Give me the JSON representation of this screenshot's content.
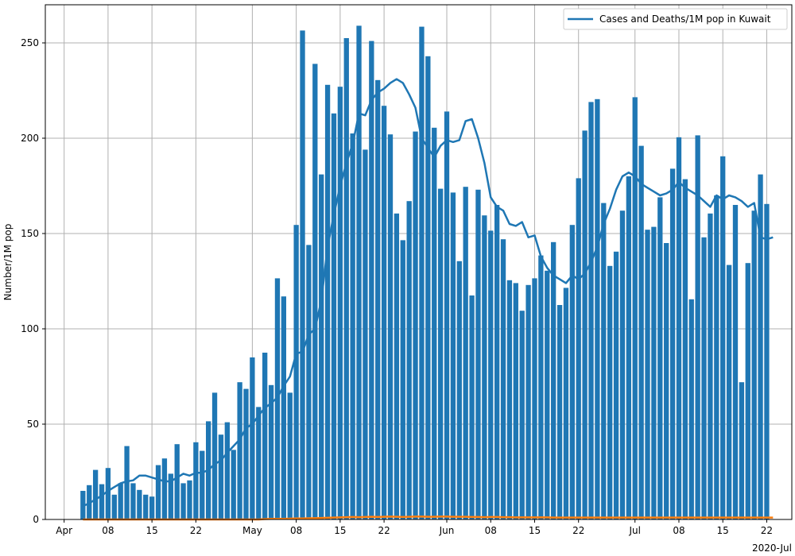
{
  "chart_data": {
    "type": "bar",
    "ylabel": "Number/1M pop",
    "xlabel": "",
    "x_offset_label": "2020-Jul",
    "ylim": [
      0,
      270
    ],
    "yticks": [
      0,
      50,
      100,
      150,
      200,
      250
    ],
    "xlim": [
      "2020-03-29",
      "2020-07-26"
    ],
    "xticks": [
      {
        "date": "2020-04-01",
        "label": "Apr"
      },
      {
        "date": "2020-04-08",
        "label": "08"
      },
      {
        "date": "2020-04-15",
        "label": "15"
      },
      {
        "date": "2020-04-22",
        "label": "22"
      },
      {
        "date": "2020-05-01",
        "label": "May"
      },
      {
        "date": "2020-05-08",
        "label": "08"
      },
      {
        "date": "2020-05-15",
        "label": "15"
      },
      {
        "date": "2020-05-22",
        "label": "22"
      },
      {
        "date": "2020-06-01",
        "label": "Jun"
      },
      {
        "date": "2020-06-08",
        "label": "08"
      },
      {
        "date": "2020-06-15",
        "label": "15"
      },
      {
        "date": "2020-06-22",
        "label": "22"
      },
      {
        "date": "2020-07-01",
        "label": "Jul"
      },
      {
        "date": "2020-07-08",
        "label": "08"
      },
      {
        "date": "2020-07-15",
        "label": "15"
      },
      {
        "date": "2020-07-22",
        "label": "22"
      }
    ],
    "grid": true,
    "legend": {
      "placement": "top-right",
      "entries": [
        "Cases and Deaths/1M pop in Kuwait"
      ]
    },
    "colors": {
      "cases": "#1f77b4",
      "deaths": "#ff7f0e"
    },
    "start_date": "2020-04-04",
    "series": [
      {
        "type": "bar",
        "values": [
          15,
          18,
          26,
          18.5,
          27,
          13,
          19,
          38.5,
          19,
          15.5,
          13,
          12,
          28.5,
          32,
          24,
          39.5,
          19,
          20.5,
          40.5,
          36,
          51.5,
          66.5,
          44.5,
          51,
          36.5,
          72,
          68.5,
          85,
          59,
          87.5,
          70.5,
          126.5,
          117,
          66.5,
          154.5,
          256.5,
          144,
          239,
          181,
          228,
          213,
          227,
          252.5,
          202.5,
          259,
          194,
          251,
          230.5,
          217,
          202,
          160.5,
          146.5,
          167,
          203.5,
          258.5,
          243,
          205.5,
          173.5,
          214,
          171.5,
          135.5,
          174.5,
          117.5,
          173,
          159.5,
          151.5,
          165,
          147,
          125.5,
          124,
          109.5,
          123,
          126.5,
          138.5,
          130.5,
          145.5,
          112.5,
          121.5,
          154.5,
          179,
          204,
          219,
          220.5,
          166,
          133,
          140.5,
          162,
          180,
          221.5,
          196,
          152,
          153.5,
          169,
          145,
          184,
          200.5,
          178.5,
          115.5,
          201.5,
          148,
          160.5,
          170,
          190.5,
          133.5,
          165,
          72,
          134.5,
          162,
          181,
          165.5
        ]
      },
      {
        "type": "line",
        "values": [
          7,
          8.5,
          10.5,
          12.5,
          15,
          17,
          19,
          20,
          20.5,
          23,
          23,
          22,
          21,
          20,
          20,
          22,
          24,
          23,
          24.5,
          24.5,
          26,
          29,
          31,
          35,
          38.5,
          42,
          48,
          50,
          54.5,
          58.5,
          61,
          64,
          70,
          75,
          87,
          88,
          97,
          100,
          115,
          143,
          160,
          175,
          187,
          197,
          213,
          212,
          220,
          224,
          226,
          229,
          231,
          229,
          223,
          216,
          200,
          195,
          190,
          196,
          199,
          198,
          199,
          209,
          210,
          200,
          187,
          169,
          164,
          162,
          155,
          154,
          156,
          148,
          149,
          138,
          132,
          128,
          126,
          124,
          128,
          126,
          129,
          135,
          143,
          155,
          163,
          173,
          180,
          182,
          180,
          176,
          174,
          172,
          170,
          171,
          173,
          177,
          174,
          172,
          170,
          167,
          164,
          170,
          168,
          170,
          169,
          167,
          164,
          166,
          148,
          147,
          148
        ]
      },
      {
        "type": "line",
        "values": [
          0,
          0,
          0,
          0,
          0,
          0,
          0,
          0,
          0,
          0,
          0,
          0,
          0,
          0,
          0,
          0,
          0,
          0,
          0,
          0,
          0,
          0,
          0,
          0,
          0,
          0,
          0,
          0,
          0,
          0.2,
          0.3,
          0.3,
          0.3,
          0.4,
          0.5,
          0.5,
          0.6,
          0.7,
          0.8,
          0.9,
          1,
          1.1,
          1.2,
          1.3,
          1.2,
          1.3,
          1.4,
          1.3,
          1.4,
          1.5,
          1.4,
          1.3,
          1.4,
          1.5,
          1.5,
          1.4,
          1.4,
          1.5,
          1.5,
          1.4,
          1.4,
          1.4,
          1.3,
          1.3,
          1.2,
          1.3,
          1.3,
          1.2,
          1.2,
          1.1,
          1.1,
          1.1,
          1.1,
          1.1,
          1.1,
          1,
          1,
          1,
          1,
          1,
          1,
          1,
          1,
          1,
          1,
          1,
          1,
          1,
          1,
          1,
          1,
          1,
          1,
          1,
          1,
          1,
          1,
          1,
          1,
          1,
          1,
          1,
          1,
          1,
          1,
          1,
          1,
          1,
          1,
          1,
          1
        ]
      }
    ]
  }
}
